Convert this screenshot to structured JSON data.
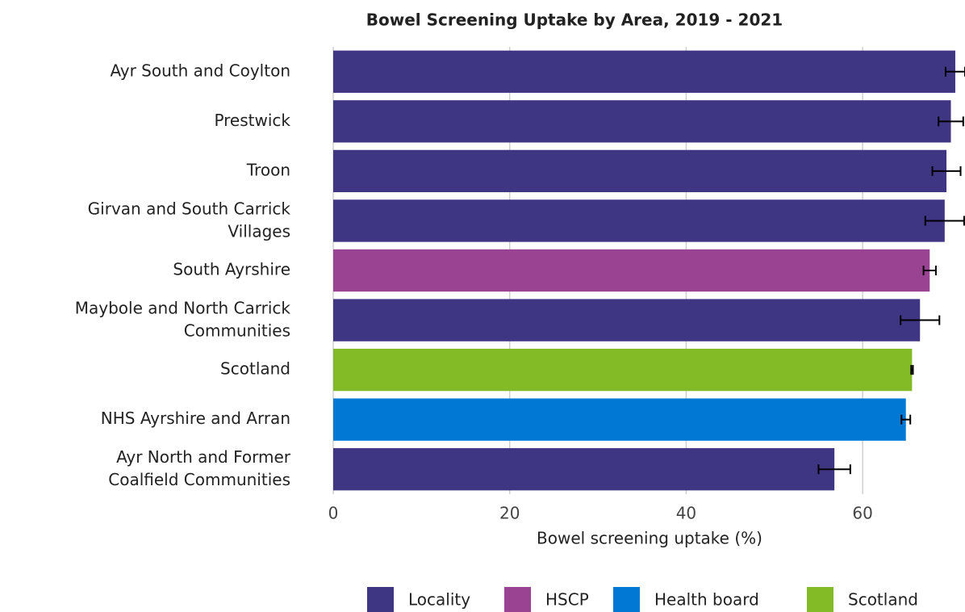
{
  "chart_data": {
    "type": "hbar",
    "title": "Bowel Screening Uptake by Area, 2019 - 2021",
    "xlabel": "Bowel screening uptake (%)",
    "categories": [
      "Ayr South and Coylton",
      "Prestwick",
      "Troon",
      "Girvan and South Carrick\nVillages",
      "South Ayrshire",
      "Maybole and North Carrick\nCommunities",
      "Scotland",
      "NHS Ayrshire and Arran",
      "Ayr North and Former\nCoalfield Communities"
    ],
    "highlight_category": "Troon",
    "highlight_color": "#ff0000",
    "series": [
      {
        "name": "Locality",
        "color": "#3f3683",
        "values": [
          70.5,
          70.0,
          69.5,
          69.3,
          null,
          66.5,
          null,
          null,
          56.8
        ],
        "errors": [
          1.1,
          1.4,
          1.6,
          2.2,
          null,
          2.2,
          null,
          null,
          1.8
        ]
      },
      {
        "name": "HSCP",
        "color": "#9b4393",
        "values": [
          null,
          null,
          null,
          null,
          67.6,
          null,
          null,
          null,
          null
        ],
        "errors": [
          null,
          null,
          null,
          null,
          0.7,
          null,
          null,
          null,
          null
        ]
      },
      {
        "name": "Health board",
        "color": "#0078d4",
        "values": [
          null,
          null,
          null,
          null,
          null,
          null,
          null,
          64.9,
          null
        ],
        "errors": [
          null,
          null,
          null,
          null,
          null,
          null,
          null,
          0.5,
          null
        ]
      },
      {
        "name": "Scotland",
        "color": "#83bb26",
        "values": [
          null,
          null,
          null,
          null,
          null,
          null,
          65.6,
          null,
          null
        ],
        "errors": [
          null,
          null,
          null,
          null,
          null,
          null,
          0.1,
          null,
          null
        ]
      }
    ],
    "xlim": [
      0,
      71.6
    ],
    "xticks": [
      0,
      20,
      40,
      60
    ],
    "grid": true
  }
}
